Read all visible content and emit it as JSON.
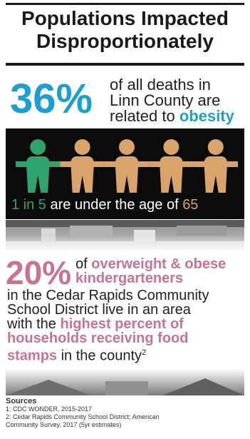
{
  "title": {
    "line1": "Populations Impacted",
    "line2": "Disproportionately"
  },
  "stat_deaths": {
    "value": "36%",
    "line1": "of all deaths in",
    "line2": "Linn County are",
    "line3_prefix": "related to ",
    "line3_highlight": "obesity"
  },
  "stat_age": {
    "ratio_highlight": "1 in 5",
    "text": " are under the age of ",
    "age_highlight": "65",
    "figures": [
      {
        "color": "#2fa36b"
      },
      {
        "color": "#d9a46b"
      },
      {
        "color": "#d9a46b"
      },
      {
        "color": "#d9a46b"
      },
      {
        "color": "#d9a46b"
      }
    ]
  },
  "stat_kindergarten": {
    "value": "20%",
    "side_prefix": "of ",
    "side_highlight1": "overweight & obese",
    "side_highlight2": "kindergarteners",
    "body1": "in the Cedar Rapids Community",
    "body2": "School District live in an area",
    "body3_prefix": "with the ",
    "body3_highlight": "highest percent of",
    "body4_highlight": "households receiving food",
    "body5_highlight": "stamps",
    "body5_suffix": " in the county",
    "footnote_mark": "2"
  },
  "sources": {
    "title": "Sources",
    "items": [
      "1: CDC WONDER, 2015-2017",
      "2: Cedar Rapids Community School District; American",
      "Community Survey, 2017 (5yr estimates)"
    ]
  },
  "colors": {
    "teal": "#1a9fcf",
    "pink": "#c9738c",
    "green": "#2fa36b",
    "tan": "#d9a46b"
  }
}
